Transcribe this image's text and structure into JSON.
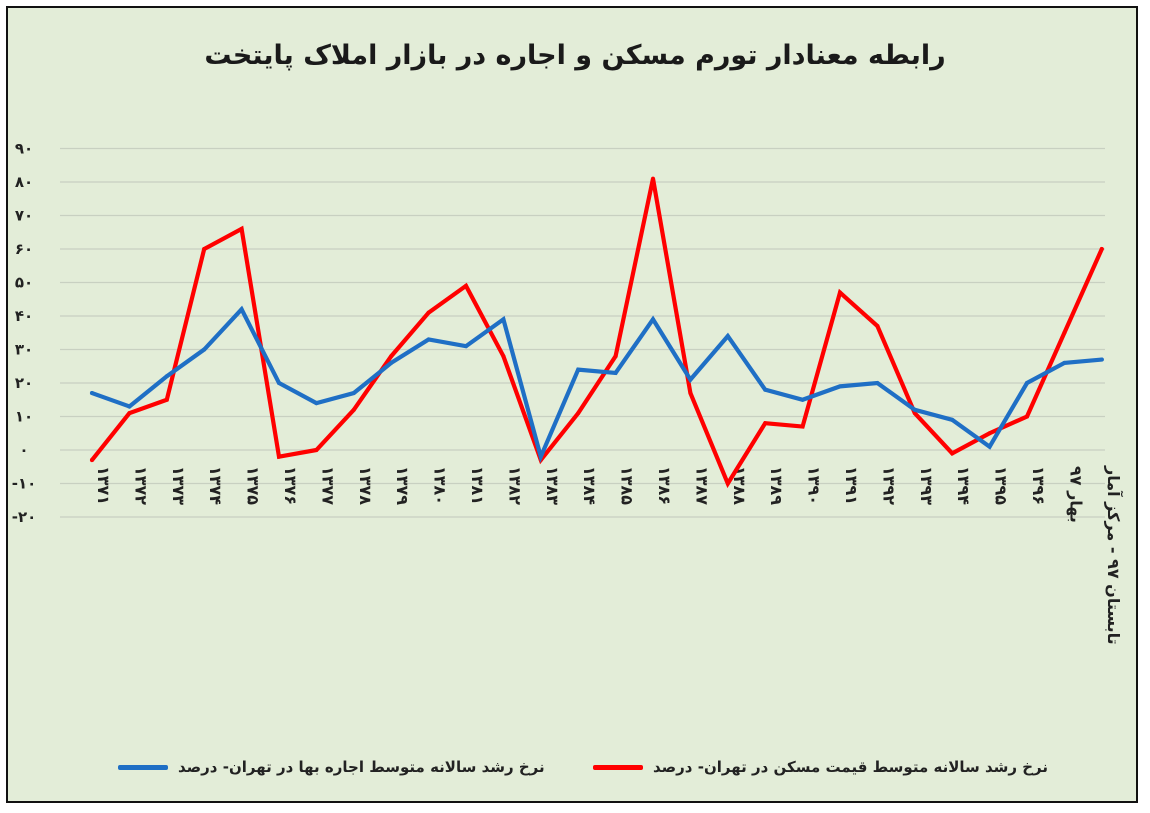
{
  "chart_data": {
    "type": "line",
    "title": "رابطه معنادار تورم مسکن و اجاره در بازار املاک پایتخت",
    "ylim": [
      -20,
      90
    ],
    "yticks": [
      "-۲۰",
      "-۱۰",
      "۰",
      "۱۰",
      "۲۰",
      "۳۰",
      "۴۰",
      "۵۰",
      "۶۰",
      "۷۰",
      "۸۰",
      "۹۰"
    ],
    "categories": [
      "۱۳۷۱",
      "۱۳۷۲",
      "۱۳۷۳",
      "۱۳۷۴",
      "۱۳۷۵",
      "۱۳۷۶",
      "۱۳۷۷",
      "۱۳۷۸",
      "۱۳۷۹",
      "۱۳۸۰",
      "۱۳۸۱",
      "۱۳۸۲",
      "۱۳۸۳",
      "۱۳۸۴",
      "۱۳۸۵",
      "۱۳۸۶",
      "۱۳۸۷",
      "۱۳۸۸",
      "۱۳۸۹",
      "۱۳۹۰",
      "۱۳۹۱",
      "۱۳۹۲",
      "۱۳۹۳",
      "۱۳۹۴",
      "۱۳۹۵",
      "۱۳۹۶",
      "بهار ۹۷",
      "تابستان ۹۷ - مرکز آمار"
    ],
    "series": [
      {
        "name": "نرخ رشد سالانه متوسط قیمت مسکن در تهران- درصد",
        "color": "#ff0000",
        "values": [
          -3,
          11,
          15,
          60,
          66,
          -2,
          0,
          12,
          28,
          41,
          49,
          28,
          -3,
          11,
          28,
          81,
          17,
          -10,
          8,
          7,
          47,
          37,
          11,
          -1,
          5,
          10,
          35,
          60
        ]
      },
      {
        "name": "نرخ رشد سالانه متوسط اجاره بها در تهران- درصد",
        "color": "#1f6fc5",
        "values": [
          17,
          13,
          22,
          30,
          42,
          20,
          14,
          17,
          26,
          33,
          31,
          39,
          -2,
          24,
          23,
          39,
          21,
          34,
          18,
          15,
          19,
          20,
          12,
          9,
          1,
          20,
          26,
          27
        ]
      }
    ]
  },
  "legend": {
    "red_label": "نرخ رشد سالانه متوسط قیمت مسکن در تهران- درصد",
    "blue_label": "نرخ رشد سالانه متوسط اجاره بها در تهران- درصد"
  }
}
